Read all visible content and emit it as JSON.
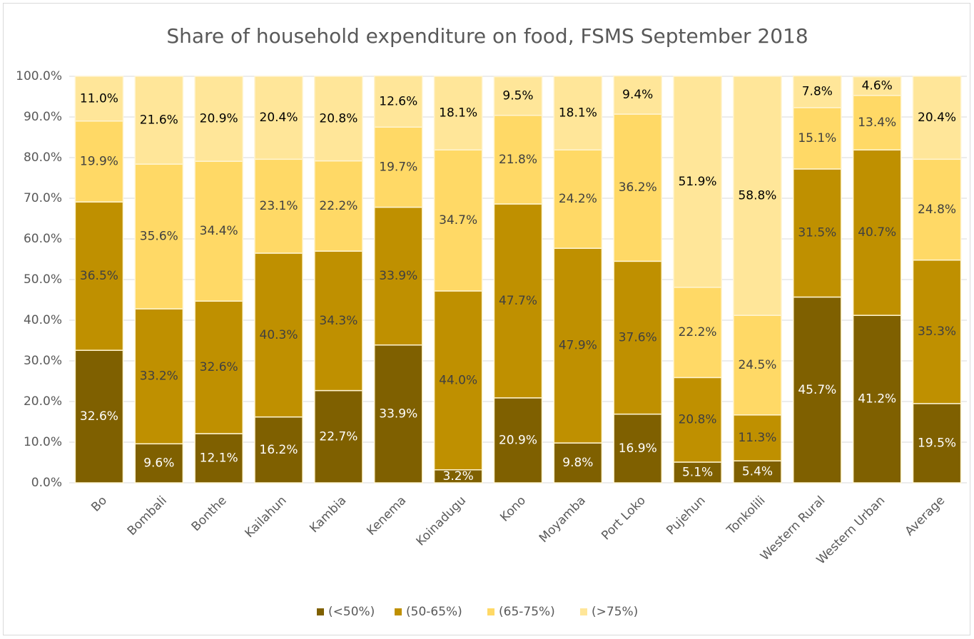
{
  "chart_data": {
    "type": "stacked_bar",
    "title": "Share of household expenditure on food, FSMS September 2018",
    "categories": [
      "Bo",
      "Bombali",
      "Bonthe",
      "Kailahun",
      "Kambia",
      "Kenema",
      "Koinadugu",
      "Kono",
      "Moyamba",
      "Port Loko",
      "Pujehun",
      "Tonkolili",
      "Western Rural",
      "Western Urban",
      "Average"
    ],
    "series": [
      {
        "name": "(<50%)",
        "color": "#7f6000",
        "label_color": "#ffffff",
        "values": [
          32.6,
          9.6,
          12.1,
          16.2,
          22.7,
          33.9,
          3.2,
          20.9,
          9.8,
          16.9,
          5.1,
          5.4,
          45.7,
          41.2,
          19.5
        ],
        "value_labels": [
          "32.6%",
          "9.6%",
          "12.1%",
          "16.2%",
          "22.7%",
          "33.9%",
          "3.2%",
          "20.9%",
          "9.8%",
          "16.9%",
          "5.1%",
          "5.4%",
          "45.7%",
          "41.2%",
          "19.5%"
        ]
      },
      {
        "name": "(50-65%)",
        "color": "#bf9000",
        "label_color": "#404040",
        "values": [
          36.5,
          33.2,
          32.6,
          40.3,
          34.3,
          33.9,
          44.0,
          47.7,
          47.9,
          37.6,
          20.8,
          11.3,
          31.5,
          40.7,
          35.3
        ],
        "value_labels": [
          "36.5%",
          "33.2%",
          "32.6%",
          "40.3%",
          "34.3%",
          "33.9%",
          "44.0%",
          "47.7%",
          "47.9%",
          "37.6%",
          "20.8%",
          "11.3%",
          "31.5%",
          "40.7%",
          "35.3%"
        ]
      },
      {
        "name": "(65-75%)",
        "color": "#ffd966",
        "label_color": "#404040",
        "values": [
          19.9,
          35.6,
          34.4,
          23.1,
          22.2,
          19.7,
          34.7,
          21.8,
          24.2,
          36.2,
          22.2,
          24.5,
          15.1,
          13.4,
          24.8
        ],
        "value_labels": [
          "19.9%",
          "35.6%",
          "34.4%",
          "23.1%",
          "22.2%",
          "19.7%",
          "34.7%",
          "21.8%",
          "24.2%",
          "36.2%",
          "22.2%",
          "24.5%",
          "15.1%",
          "13.4%",
          "24.8%"
        ]
      },
      {
        "name": "(>75%)",
        "color": "#ffe699",
        "label_color": "#000000",
        "values": [
          11.0,
          21.6,
          20.9,
          20.4,
          20.8,
          12.6,
          18.1,
          9.5,
          18.1,
          9.4,
          51.9,
          58.8,
          7.8,
          4.6,
          20.4
        ],
        "value_labels": [
          "11.0%",
          "21.6%",
          "20.9%",
          "20.4%",
          "20.8%",
          "12.6%",
          "18.1%",
          "9.5%",
          "18.1%",
          "9.4%",
          "51.9%",
          "58.8%",
          "7.8%",
          "4.6%",
          "20.4%"
        ]
      }
    ],
    "ylim": [
      0,
      100
    ],
    "yticks": [
      {
        "value": 0,
        "label": "0.0%"
      },
      {
        "value": 10,
        "label": "10.0%"
      },
      {
        "value": 20,
        "label": "20.0%"
      },
      {
        "value": 30,
        "label": "30.0%"
      },
      {
        "value": 40,
        "label": "40.0%"
      },
      {
        "value": 50,
        "label": "50.0%"
      },
      {
        "value": 60,
        "label": "60.0%"
      },
      {
        "value": 70,
        "label": "70.0%"
      },
      {
        "value": 80,
        "label": "80.0%"
      },
      {
        "value": 90,
        "label": "90.0%"
      },
      {
        "value": 100,
        "label": "100.0%"
      }
    ],
    "grid": true,
    "legend": "bottom"
  }
}
